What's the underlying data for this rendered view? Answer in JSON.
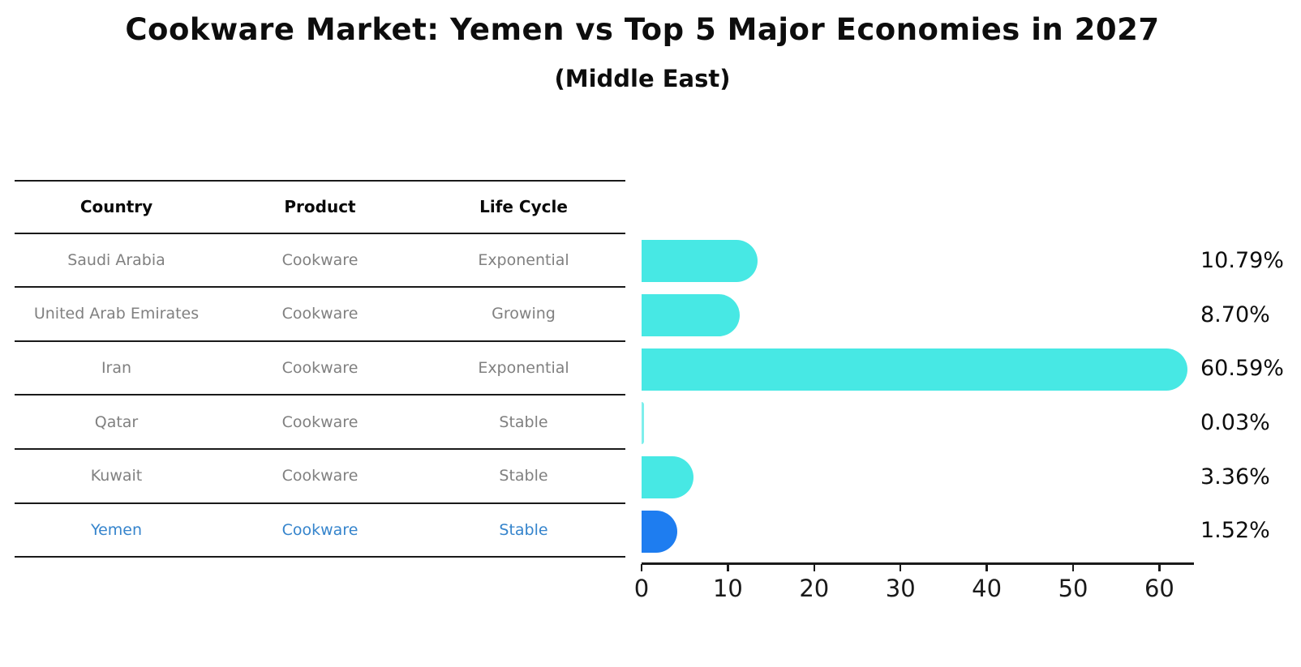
{
  "title": "Cookware Market: Yemen vs Top 5 Major Economies in 2027",
  "subtitle": "(Middle East)",
  "table": {
    "headers": [
      "Country",
      "Product",
      "Life Cycle"
    ],
    "rows": [
      {
        "country": "Saudi Arabia",
        "product": "Cookware",
        "life_cycle": "Exponential",
        "highlight": false
      },
      {
        "country": "United Arab Emirates",
        "product": "Cookware",
        "life_cycle": "Growing",
        "highlight": false
      },
      {
        "country": "Iran",
        "product": "Cookware",
        "life_cycle": "Exponential",
        "highlight": false
      },
      {
        "country": "Qatar",
        "product": "Cookware",
        "life_cycle": "Stable",
        "highlight": false
      },
      {
        "country": "Kuwait",
        "product": "Cookware",
        "life_cycle": "Stable",
        "highlight": false
      },
      {
        "country": "Yemen",
        "product": "Cookware",
        "life_cycle": "Stable",
        "highlight": true
      }
    ]
  },
  "chart_data": {
    "type": "bar",
    "orientation": "horizontal",
    "title": "Cookware Market: Yemen vs Top 5 Major Economies in 2027",
    "subtitle": "(Middle East)",
    "categories": [
      "Saudi Arabia",
      "United Arab Emirates",
      "Iran",
      "Qatar",
      "Kuwait",
      "Yemen"
    ],
    "values": [
      10.79,
      8.7,
      60.59,
      0.03,
      3.36,
      1.52
    ],
    "value_labels": [
      "10.79%",
      "8.70%",
      "60.59%",
      "0.03%",
      "3.36%",
      "1.52%"
    ],
    "unit": "%",
    "x_ticks": [
      0,
      10,
      20,
      30,
      40,
      50,
      60
    ],
    "xlim": [
      0,
      64
    ],
    "grid": false,
    "legend": null,
    "highlight_category": "Yemen",
    "colors": {
      "bar": "#47e8e4",
      "highlight_bar": "#1e7df0",
      "row_text": "#808080",
      "highlight_text": "#3584cc",
      "text": "#0d0d0d",
      "axis": "#1a1a1a"
    }
  }
}
